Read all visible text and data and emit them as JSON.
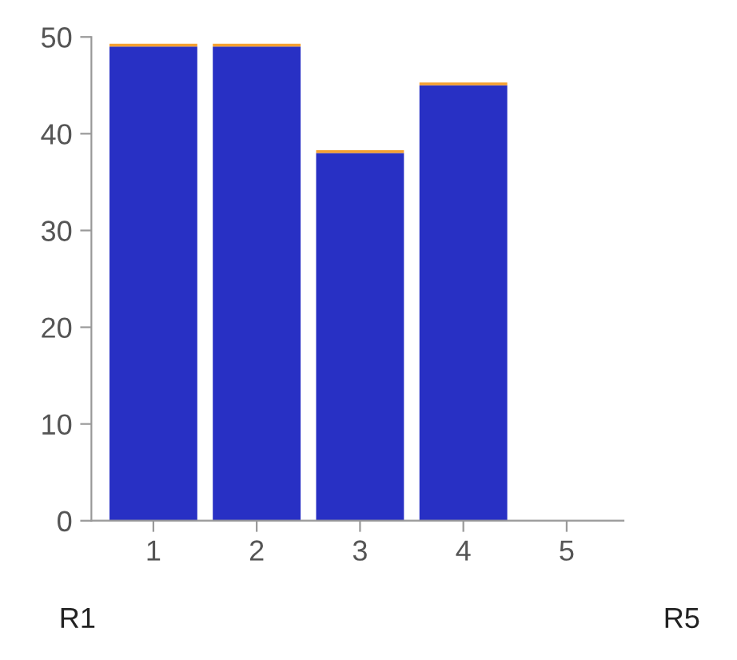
{
  "chart_data": {
    "type": "bar",
    "stacked": true,
    "categories": [
      "1",
      "2",
      "3",
      "4",
      "5"
    ],
    "series": [
      {
        "color": "#2830c4",
        "values": [
          49,
          49,
          38,
          45,
          0
        ]
      },
      {
        "color": "#f5a030",
        "values": [
          0.3,
          0.3,
          0.3,
          0.3,
          0
        ]
      }
    ],
    "ylim": [
      0,
      50
    ],
    "yticks": [
      0,
      10,
      20,
      30,
      40,
      50
    ],
    "grid": false,
    "legend": false,
    "annotations": [
      "R1",
      "R5"
    ]
  }
}
